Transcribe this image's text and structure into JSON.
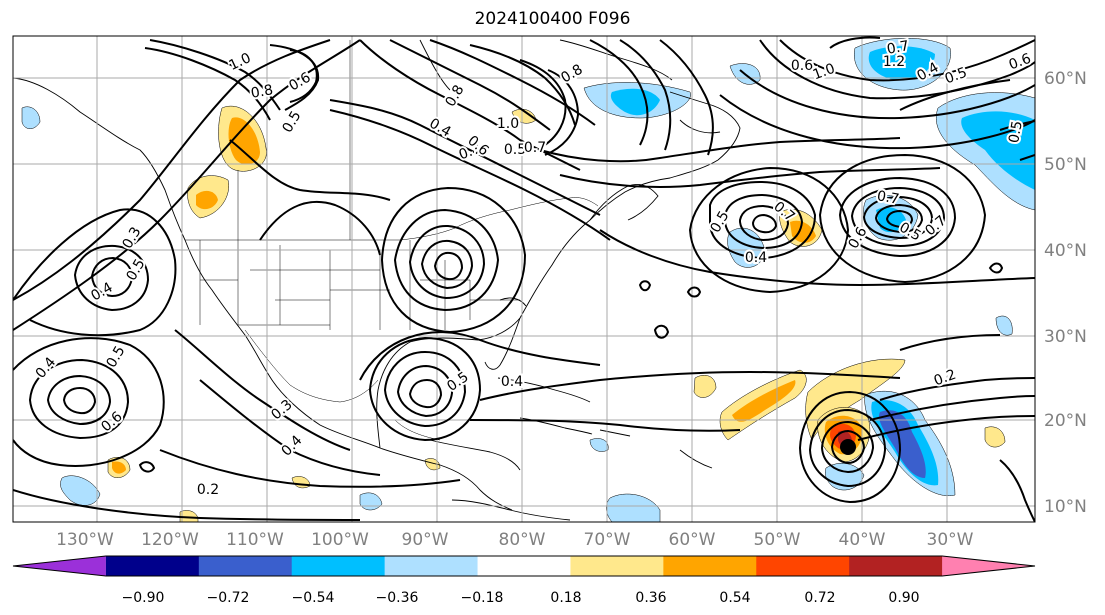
{
  "title": "2024100400 F096",
  "lon_ticks": [
    "130°W",
    "120°W",
    "110°W",
    "100°W",
    "90°W",
    "80°W",
    "70°W",
    "60°W",
    "50°W",
    "40°W",
    "30°W"
  ],
  "lat_ticks": [
    "60°N",
    "50°N",
    "40°N",
    "30°N",
    "20°N",
    "10°N"
  ],
  "colorbar": {
    "ticks": [
      "−0.90",
      "−0.72",
      "−0.54",
      "−0.36",
      "−0.18",
      "0.18",
      "0.36",
      "0.54",
      "0.72",
      "0.90"
    ],
    "colors": [
      "#9b30d9",
      "#00008b",
      "#3a5fcd",
      "#00bfff",
      "#aee0ff",
      "#ffffff",
      "#ffe88c",
      "#ffa500",
      "#ff4500",
      "#b22222",
      "#ff80b0"
    ]
  },
  "contour_labels": [
    "1.0",
    "0.8",
    "0.6",
    "0.5",
    "0.4",
    "0.7",
    "1.0",
    "0.6",
    "0.5",
    "0.7",
    "0.8",
    "0.5",
    "0.4",
    "0.8",
    "0.6",
    "1.0",
    "1.2",
    "0.7",
    "0.4",
    "0.5",
    "0.5",
    "0.6",
    "0.7",
    "0.7",
    "0.6",
    "0.5",
    "0.7",
    "0.3",
    "0.4",
    "0.5",
    "0.4",
    "0.5",
    "0.6",
    "0.3",
    "0.4",
    "0.2",
    "0.5",
    "0.4",
    "0.2"
  ]
}
